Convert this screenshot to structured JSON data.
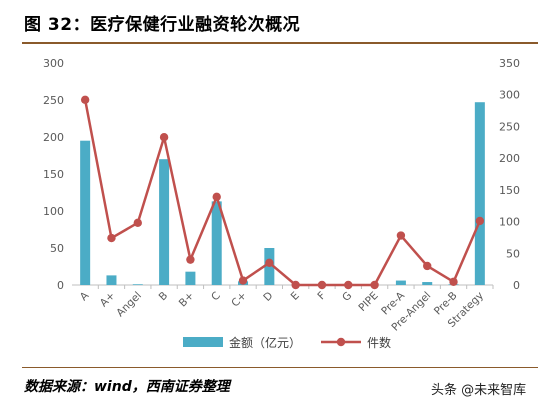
{
  "figure_title": "图 32：医疗保健行业融资轮次概况",
  "source_note": "数据来源：wind，西南证券整理",
  "watermark": "头条 @未来智库",
  "colors": {
    "bar": "#4bacc6",
    "line": "#c0504d",
    "rule": "#8a5a2b",
    "axis_text": "#595959"
  },
  "chart_data": {
    "type": "bar+line",
    "categories": [
      "A",
      "A+",
      "Angel",
      "B",
      "B+",
      "C",
      "C+",
      "D",
      "E",
      "F",
      "G",
      "PIPE",
      "Pre-A",
      "Pre-Angel",
      "Pre-B",
      "Strategy"
    ],
    "series": [
      {
        "name": "金额（亿元）",
        "type": "bar",
        "axis": "left",
        "values": [
          195,
          13,
          1,
          170,
          18,
          113,
          5,
          50,
          0,
          0,
          0,
          0,
          6,
          4,
          1,
          247
        ]
      },
      {
        "name": "件数",
        "type": "line",
        "axis": "right",
        "values": [
          292,
          74,
          98,
          233,
          40,
          139,
          7,
          35,
          0,
          0,
          0,
          0,
          78,
          30,
          5,
          101
        ]
      }
    ],
    "y_left": {
      "min": 0,
      "max": 300,
      "ticks": [
        0,
        50,
        100,
        150,
        200,
        250,
        300
      ]
    },
    "y_right": {
      "min": 0,
      "max": 350,
      "ticks": [
        0,
        50,
        100,
        150,
        200,
        250,
        300,
        350
      ]
    },
    "grid": false,
    "legend_position": "bottom"
  }
}
